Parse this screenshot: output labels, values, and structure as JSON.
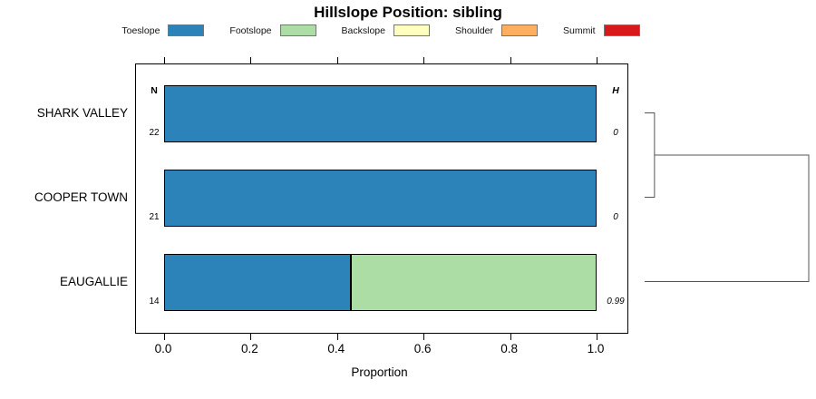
{
  "chart_data": {
    "type": "bar",
    "orientation": "horizontal-stacked",
    "title": "Hillslope Position: sibling",
    "xlabel": "Proportion",
    "xlim": [
      0,
      1
    ],
    "xticks": [
      "0.0",
      "0.2",
      "0.4",
      "0.6",
      "0.8",
      "1.0"
    ],
    "grid": false,
    "legend_position": "top",
    "legend": [
      {
        "label": "Toeslope",
        "color": "#2B83BA"
      },
      {
        "label": "Footslope",
        "color": "#ABDDA4"
      },
      {
        "label": "Backslope",
        "color": "#FFFFBF"
      },
      {
        "label": "Shoulder",
        "color": "#FDAE61"
      },
      {
        "label": "Summit",
        "color": "#D7191C"
      }
    ],
    "columns": {
      "n_header": "N",
      "h_header": "H"
    },
    "rows": [
      {
        "label": "SHARK VALLEY",
        "n": "22",
        "h": "0",
        "segments": [
          {
            "category": "Toeslope",
            "proportion": 1.0
          }
        ]
      },
      {
        "label": "COOPER TOWN",
        "n": "21",
        "h": "0",
        "segments": [
          {
            "category": "Toeslope",
            "proportion": 1.0
          }
        ]
      },
      {
        "label": "EAUGALLIE",
        "n": "14",
        "h": "0.99",
        "segments": [
          {
            "category": "Toeslope",
            "proportion": 0.43
          },
          {
            "category": "Footslope",
            "proportion": 0.57
          }
        ]
      }
    ],
    "dendrogram": {
      "leaves": [
        "SHARK VALLEY",
        "COOPER TOWN",
        "EAUGALLIE"
      ],
      "merges": [
        {
          "a": 0,
          "b": 1,
          "relative_height": 0.06
        },
        {
          "a": 3,
          "b": 2,
          "relative_height": 1.0
        }
      ]
    }
  }
}
